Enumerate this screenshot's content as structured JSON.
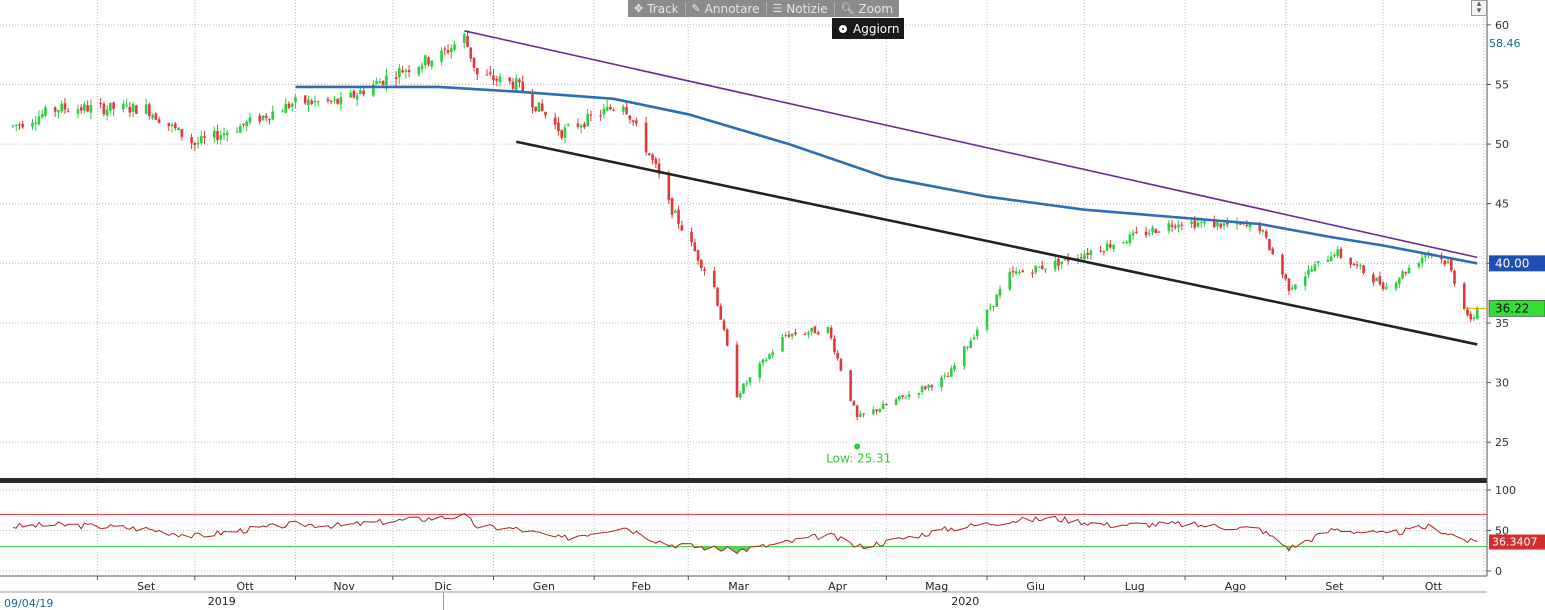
{
  "toolbar": {
    "track_label": "Track",
    "annotate_label": "Annotare",
    "news_label": "Notizie",
    "zoom_label": "Zoom",
    "refresh_label": "Aggiorn"
  },
  "colors": {
    "up": "#2ecc40",
    "down": "#e0393b",
    "ma": "#2e6db4",
    "upper_trend": "#6b2c91",
    "lower_trend": "#222222",
    "rsi": "#b22222",
    "rsi_upper": "#e53935",
    "rsi_lower": "#33cc33",
    "grid": "#bdbdbd",
    "last_price_box": "#33dd33",
    "ma_box": "#1f4fb5",
    "rsi_box": "#d32f2f"
  },
  "icons": {
    "track": "crosshair-icon",
    "annotate": "pencil-icon",
    "news": "news-icon",
    "zoom": "magnifier-icon",
    "refresh": "radio-icon"
  },
  "chart_data": [
    {
      "type": "candlestick",
      "title": "",
      "ylabel": "",
      "ylim": [
        22,
        62
      ],
      "y_ticks": [
        25,
        30,
        35,
        40,
        45,
        50,
        55,
        60
      ],
      "x_tick_labels": [
        "Set",
        "Ott",
        "Nov",
        "Dic",
        "Gen",
        "Feb",
        "Mar",
        "Apr",
        "Mag",
        "Giu",
        "Lug",
        "Ago",
        "Set",
        "Ott"
      ],
      "year_labels": [
        "2019",
        "2020"
      ],
      "start_date_label": "09/04/19",
      "grid": true,
      "price_path": {
        "dates": [
          "2019-08-06",
          "2019-08-20",
          "2019-09-03",
          "2019-09-16",
          "2019-10-01",
          "2019-10-15",
          "2019-11-01",
          "2019-11-15",
          "2019-12-02",
          "2019-12-16",
          "2019-12-23",
          "2019-12-27",
          "2020-01-08",
          "2020-01-22",
          "2020-02-10",
          "2020-02-20",
          "2020-02-24",
          "2020-03-09",
          "2020-03-16",
          "2020-03-31",
          "2020-04-13",
          "2020-04-22",
          "2020-04-30",
          "2020-05-20",
          "2020-06-08",
          "2020-06-22",
          "2020-07-08",
          "2020-07-30",
          "2020-08-24",
          "2020-09-02",
          "2020-09-16",
          "2020-10-02",
          "2020-10-15",
          "2020-10-21",
          "2020-10-28",
          "2020-10-30"
        ],
        "close": [
          51.5,
          53,
          53,
          53,
          50,
          51.5,
          53.5,
          53.5,
          56,
          57.5,
          59,
          55.8,
          55,
          51,
          53.5,
          48,
          45,
          38,
          29,
          34,
          34.5,
          27,
          28,
          30.5,
          39,
          40,
          41.5,
          43.5,
          43,
          38,
          41,
          38,
          41,
          40,
          35,
          36.22
        ]
      },
      "moving_average": {
        "name": "",
        "x": [
          "2019-11-01",
          "2019-12-15",
          "2020-01-08",
          "2020-02-07",
          "2020-03-01",
          "2020-04-01",
          "2020-05-01",
          "2020-06-01",
          "2020-07-01",
          "2020-08-01",
          "2020-08-24",
          "2020-09-15",
          "2020-10-01",
          "2020-10-30"
        ],
        "y": [
          54.8,
          54.8,
          54.4,
          53.8,
          52.5,
          50.0,
          47.2,
          45.6,
          44.5,
          43.8,
          43.3,
          42.2,
          41.5,
          40.0
        ]
      },
      "upper_trendline": {
        "x": [
          "2019-12-23",
          "2020-10-30"
        ],
        "y": [
          59.5,
          40.5
        ]
      },
      "lower_trendline": {
        "x": [
          "2020-01-08",
          "2020-10-30"
        ],
        "y": [
          50.2,
          33.2
        ]
      },
      "annotations": [
        {
          "label": "Low: 25.31",
          "x": "2020-04-22",
          "y": 25.31
        }
      ],
      "axis_labels": [
        {
          "value": "58.46",
          "y": 58.46
        },
        {
          "value": "40.00",
          "y": 40.0
        },
        {
          "value": "36.22",
          "y": 36.22
        }
      ]
    },
    {
      "type": "line",
      "title": "",
      "ylim": [
        -5,
        105
      ],
      "y_ticks": [
        0,
        50,
        100
      ],
      "overbought": 70,
      "oversold": 30,
      "last_value_label": "36.3407",
      "series": [
        {
          "x": [
            "2019-08-06",
            "2019-08-20",
            "2019-09-03",
            "2019-09-16",
            "2019-10-01",
            "2019-10-15",
            "2019-11-01",
            "2019-11-15",
            "2019-12-02",
            "2019-12-16",
            "2019-12-23",
            "2019-12-27",
            "2020-01-08",
            "2020-01-22",
            "2020-02-10",
            "2020-02-20",
            "2020-02-24",
            "2020-03-09",
            "2020-03-16",
            "2020-03-31",
            "2020-04-13",
            "2020-04-22",
            "2020-04-30",
            "2020-05-20",
            "2020-06-08",
            "2020-06-22",
            "2020-07-08",
            "2020-07-30",
            "2020-08-24",
            "2020-09-02",
            "2020-09-16",
            "2020-10-02",
            "2020-10-15",
            "2020-10-21",
            "2020-10-28",
            "2020-10-30"
          ],
          "values": [
            55,
            57,
            55,
            52,
            43,
            50,
            58,
            56,
            62,
            66,
            68,
            55,
            52,
            40,
            55,
            38,
            33,
            28,
            25,
            35,
            45,
            30,
            35,
            52,
            62,
            65,
            57,
            58,
            52,
            28,
            52,
            45,
            55,
            47,
            36,
            36.34
          ]
        }
      ]
    }
  ]
}
